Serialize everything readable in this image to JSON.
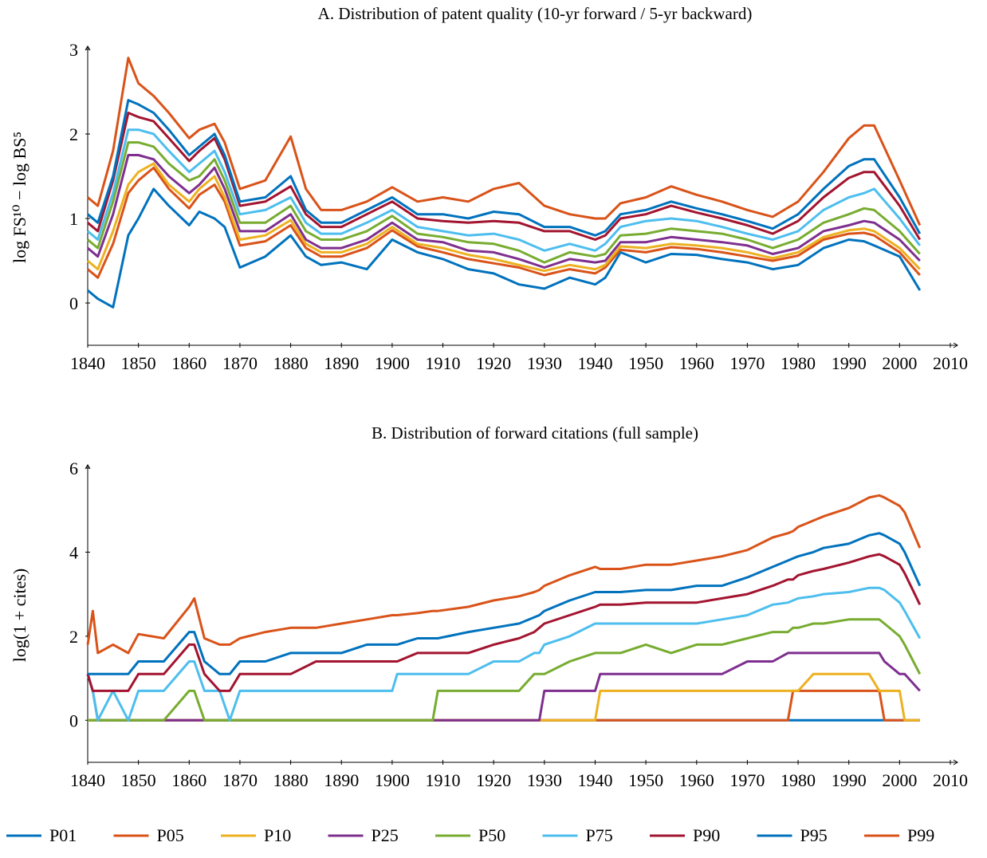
{
  "chart_data": [
    {
      "type": "line",
      "title": "A. Distribution of patent quality (10-yr forward / 5-yr backward)",
      "y_label": "log FS¹⁰ − log BS⁵",
      "x": [
        1840,
        1842,
        1845,
        1848,
        1850,
        1853,
        1856,
        1860,
        1862,
        1865,
        1867,
        1870,
        1875,
        1880,
        1883,
        1886,
        1890,
        1895,
        1900,
        1905,
        1910,
        1915,
        1920,
        1925,
        1930,
        1935,
        1940,
        1942,
        1945,
        1950,
        1955,
        1960,
        1965,
        1970,
        1975,
        1980,
        1985,
        1990,
        1993,
        1995,
        2000,
        2004
      ],
      "xlim": [
        1840,
        2010
      ],
      "ylim": [
        -0.5,
        3
      ],
      "xticks": [
        1840,
        1850,
        1860,
        1870,
        1880,
        1890,
        1900,
        1910,
        1920,
        1930,
        1940,
        1950,
        1960,
        1970,
        1980,
        1990,
        2000,
        2010
      ],
      "yticks": [
        0,
        1,
        2,
        3
      ],
      "series": [
        {
          "name": "P01",
          "color": "#0072bd",
          "values": [
            0.15,
            0.05,
            -0.05,
            0.8,
            1.0,
            1.35,
            1.15,
            0.92,
            1.08,
            1.0,
            0.9,
            0.42,
            0.55,
            0.8,
            0.55,
            0.45,
            0.48,
            0.4,
            0.75,
            0.6,
            0.52,
            0.4,
            0.35,
            0.22,
            0.17,
            0.3,
            0.22,
            0.3,
            0.6,
            0.48,
            0.58,
            0.57,
            0.52,
            0.48,
            0.4,
            0.45,
            0.65,
            0.75,
            0.73,
            0.68,
            0.55,
            0.15
          ]
        },
        {
          "name": "P05",
          "color": "#d95319",
          "values": [
            0.4,
            0.3,
            0.7,
            1.3,
            1.45,
            1.6,
            1.35,
            1.12,
            1.28,
            1.4,
            1.2,
            0.68,
            0.73,
            0.92,
            0.65,
            0.55,
            0.55,
            0.65,
            0.86,
            0.67,
            0.6,
            0.52,
            0.47,
            0.42,
            0.33,
            0.4,
            0.35,
            0.42,
            0.63,
            0.6,
            0.66,
            0.64,
            0.6,
            0.55,
            0.5,
            0.56,
            0.75,
            0.82,
            0.83,
            0.8,
            0.6,
            0.33
          ]
        },
        {
          "name": "P10",
          "color": "#edb120",
          "values": [
            0.5,
            0.4,
            0.85,
            1.4,
            1.55,
            1.65,
            1.4,
            1.2,
            1.35,
            1.5,
            1.25,
            0.75,
            0.8,
            0.98,
            0.7,
            0.6,
            0.6,
            0.7,
            0.9,
            0.7,
            0.65,
            0.57,
            0.52,
            0.45,
            0.38,
            0.45,
            0.4,
            0.45,
            0.67,
            0.65,
            0.7,
            0.68,
            0.65,
            0.6,
            0.53,
            0.6,
            0.78,
            0.86,
            0.88,
            0.85,
            0.65,
            0.4
          ]
        },
        {
          "name": "P25",
          "color": "#7e2f8e",
          "values": [
            0.65,
            0.55,
            1.05,
            1.75,
            1.75,
            1.7,
            1.5,
            1.3,
            1.4,
            1.6,
            1.35,
            0.85,
            0.85,
            1.05,
            0.75,
            0.65,
            0.65,
            0.75,
            0.95,
            0.75,
            0.72,
            0.62,
            0.6,
            0.52,
            0.42,
            0.52,
            0.48,
            0.5,
            0.72,
            0.72,
            0.78,
            0.75,
            0.72,
            0.68,
            0.58,
            0.65,
            0.85,
            0.92,
            0.97,
            0.95,
            0.75,
            0.5
          ]
        },
        {
          "name": "P50",
          "color": "#77ac30",
          "values": [
            0.75,
            0.65,
            1.2,
            1.9,
            1.9,
            1.85,
            1.65,
            1.45,
            1.5,
            1.7,
            1.45,
            0.95,
            0.95,
            1.15,
            0.85,
            0.75,
            0.75,
            0.85,
            1.03,
            0.82,
            0.78,
            0.72,
            0.7,
            0.62,
            0.48,
            0.6,
            0.55,
            0.58,
            0.8,
            0.82,
            0.88,
            0.85,
            0.82,
            0.75,
            0.65,
            0.75,
            0.95,
            1.05,
            1.12,
            1.1,
            0.85,
            0.58
          ]
        },
        {
          "name": "P75",
          "color": "#4dbeee",
          "values": [
            0.85,
            0.75,
            1.3,
            2.05,
            2.05,
            2.0,
            1.8,
            1.55,
            1.65,
            1.8,
            1.55,
            1.05,
            1.1,
            1.25,
            0.95,
            0.82,
            0.82,
            0.95,
            1.1,
            0.9,
            0.85,
            0.8,
            0.82,
            0.75,
            0.62,
            0.7,
            0.62,
            0.7,
            0.9,
            0.97,
            1.0,
            0.97,
            0.9,
            0.82,
            0.75,
            0.85,
            1.1,
            1.25,
            1.3,
            1.35,
            1.0,
            0.68
          ]
        },
        {
          "name": "P90",
          "color": "#a2142f",
          "values": [
            0.95,
            0.85,
            1.45,
            2.25,
            2.2,
            2.15,
            1.95,
            1.68,
            1.8,
            1.95,
            1.7,
            1.15,
            1.2,
            1.38,
            1.05,
            0.9,
            0.9,
            1.05,
            1.2,
            1.0,
            0.97,
            0.95,
            0.97,
            0.95,
            0.85,
            0.85,
            0.75,
            0.8,
            1.0,
            1.05,
            1.15,
            1.07,
            1.0,
            0.92,
            0.82,
            0.97,
            1.25,
            1.48,
            1.55,
            1.55,
            1.15,
            0.75
          ]
        },
        {
          "name": "P95",
          "color": "#0072bd",
          "values": [
            1.05,
            0.95,
            1.5,
            2.4,
            2.35,
            2.25,
            2.05,
            1.75,
            1.85,
            2.0,
            1.75,
            1.2,
            1.25,
            1.5,
            1.1,
            0.95,
            0.95,
            1.1,
            1.25,
            1.05,
            1.05,
            1.0,
            1.08,
            1.05,
            0.9,
            0.9,
            0.8,
            0.85,
            1.05,
            1.1,
            1.2,
            1.12,
            1.05,
            0.97,
            0.88,
            1.05,
            1.35,
            1.62,
            1.7,
            1.7,
            1.25,
            0.82
          ]
        },
        {
          "name": "P99",
          "color": "#d95319",
          "values": [
            1.25,
            1.15,
            1.8,
            2.9,
            2.6,
            2.45,
            2.25,
            1.95,
            2.05,
            2.12,
            1.9,
            1.35,
            1.45,
            1.97,
            1.35,
            1.1,
            1.1,
            1.2,
            1.37,
            1.2,
            1.25,
            1.2,
            1.35,
            1.42,
            1.15,
            1.05,
            1.0,
            1.0,
            1.18,
            1.25,
            1.38,
            1.28,
            1.2,
            1.1,
            1.02,
            1.2,
            1.55,
            1.95,
            2.1,
            2.1,
            1.45,
            0.92
          ]
        }
      ]
    },
    {
      "type": "line",
      "title": "B. Distribution of forward citations (full sample)",
      "y_label": "log(1 + cites)",
      "x": [
        1840,
        1841,
        1842,
        1845,
        1848,
        1850,
        1855,
        1860,
        1861,
        1863,
        1866,
        1868,
        1870,
        1875,
        1880,
        1885,
        1890,
        1895,
        1900,
        1901,
        1905,
        1908,
        1909,
        1915,
        1920,
        1925,
        1928,
        1929,
        1930,
        1935,
        1940,
        1941,
        1945,
        1950,
        1955,
        1960,
        1965,
        1970,
        1975,
        1978,
        1979,
        1980,
        1983,
        1985,
        1990,
        1994,
        1996,
        1997,
        2000,
        2001,
        2004
      ],
      "xlim": [
        1840,
        2010
      ],
      "ylim": [
        -1,
        6
      ],
      "xticks": [
        1840,
        1850,
        1860,
        1870,
        1880,
        1890,
        1900,
        1910,
        1920,
        1930,
        1940,
        1950,
        1960,
        1970,
        1980,
        1990,
        2000,
        2010
      ],
      "yticks": [
        0,
        2,
        4,
        6
      ],
      "series": [
        {
          "color": "#0072bd",
          "values": [
            0,
            0,
            0,
            0,
            0,
            0,
            0,
            0,
            0,
            0,
            0,
            0,
            0,
            0,
            0,
            0,
            0,
            0,
            0,
            0,
            0,
            0,
            0,
            0,
            0,
            0,
            0,
            0,
            0,
            0,
            0,
            0,
            0,
            0,
            0,
            0,
            0,
            0,
            0,
            0,
            0,
            0,
            0,
            0,
            0,
            0,
            0,
            0,
            0,
            0,
            0
          ]
        },
        {
          "color": "#d95319",
          "values": [
            0,
            0,
            0,
            0,
            0,
            0,
            0,
            0,
            0,
            0,
            0,
            0,
            0,
            0,
            0,
            0,
            0,
            0,
            0,
            0,
            0,
            0,
            0,
            0,
            0,
            0,
            0,
            0,
            0,
            0,
            0,
            0,
            0,
            0,
            0,
            0,
            0,
            0,
            0,
            0,
            0.7,
            0.7,
            0.7,
            0.7,
            0.7,
            0.7,
            0.7,
            0,
            0,
            0,
            0
          ]
        },
        {
          "color": "#edb120",
          "values": [
            0,
            0,
            0,
            0,
            0,
            0,
            0,
            0,
            0,
            0,
            0,
            0,
            0,
            0,
            0,
            0,
            0,
            0,
            0,
            0,
            0,
            0,
            0,
            0,
            0,
            0,
            0,
            0,
            0,
            0,
            0,
            0.7,
            0.7,
            0.7,
            0.7,
            0.7,
            0.7,
            0.7,
            0.7,
            0.7,
            0.7,
            0.7,
            1.1,
            1.1,
            1.1,
            1.1,
            0.7,
            0.7,
            0.7,
            0,
            0
          ]
        },
        {
          "color": "#7e2f8e",
          "values": [
            1.1,
            0.7,
            0,
            0,
            0,
            0,
            0,
            0,
            0,
            0,
            0,
            0,
            0,
            0,
            0,
            0,
            0,
            0,
            0,
            0,
            0,
            0,
            0,
            0,
            0,
            0,
            0,
            0,
            0.7,
            0.7,
            0.7,
            1.1,
            1.1,
            1.1,
            1.1,
            1.1,
            1.1,
            1.4,
            1.4,
            1.6,
            1.6,
            1.6,
            1.6,
            1.6,
            1.6,
            1.6,
            1.6,
            1.4,
            1.1,
            1.1,
            0.7
          ]
        },
        {
          "color": "#77ac30",
          "values": [
            0,
            0,
            0,
            0,
            0,
            0,
            0,
            0.7,
            0.7,
            0,
            0,
            0,
            0,
            0,
            0,
            0,
            0,
            0,
            0,
            0,
            0,
            0,
            0.7,
            0.7,
            0.7,
            0.7,
            1.1,
            1.1,
            1.1,
            1.4,
            1.6,
            1.6,
            1.6,
            1.8,
            1.6,
            1.8,
            1.8,
            1.95,
            2.1,
            2.1,
            2.2,
            2.2,
            2.3,
            2.3,
            2.4,
            2.4,
            2.4,
            2.3,
            2.0,
            1.8,
            1.1
          ]
        },
        {
          "color": "#4dbeee",
          "values": [
            1.1,
            0.7,
            0,
            0.7,
            0,
            0.7,
            0.7,
            1.4,
            1.4,
            0.7,
            0.7,
            0,
            0.7,
            0.7,
            0.7,
            0.7,
            0.7,
            0.7,
            0.7,
            1.1,
            1.1,
            1.1,
            1.1,
            1.1,
            1.4,
            1.4,
            1.6,
            1.6,
            1.8,
            2.0,
            2.3,
            2.3,
            2.3,
            2.3,
            2.3,
            2.3,
            2.4,
            2.5,
            2.75,
            2.8,
            2.85,
            2.9,
            2.95,
            3.0,
            3.05,
            3.15,
            3.15,
            3.1,
            2.8,
            2.6,
            1.95
          ]
        },
        {
          "color": "#a2142f",
          "values": [
            1.1,
            0.7,
            0.7,
            0.7,
            0.7,
            1.1,
            1.1,
            1.8,
            1.8,
            1.1,
            0.7,
            0.7,
            1.1,
            1.1,
            1.1,
            1.4,
            1.4,
            1.4,
            1.4,
            1.4,
            1.6,
            1.6,
            1.6,
            1.6,
            1.8,
            1.95,
            2.1,
            2.2,
            2.3,
            2.5,
            2.7,
            2.75,
            2.75,
            2.8,
            2.8,
            2.8,
            2.9,
            3.0,
            3.2,
            3.35,
            3.35,
            3.45,
            3.55,
            3.6,
            3.75,
            3.9,
            3.95,
            3.9,
            3.7,
            3.5,
            2.75
          ]
        },
        {
          "color": "#0072bd",
          "values": [
            1.1,
            1.1,
            1.1,
            1.1,
            1.1,
            1.4,
            1.4,
            2.1,
            2.1,
            1.4,
            1.1,
            1.1,
            1.4,
            1.4,
            1.6,
            1.6,
            1.6,
            1.8,
            1.8,
            1.8,
            1.95,
            1.95,
            1.95,
            2.1,
            2.2,
            2.3,
            2.45,
            2.5,
            2.6,
            2.85,
            3.05,
            3.05,
            3.05,
            3.1,
            3.1,
            3.2,
            3.2,
            3.4,
            3.65,
            3.8,
            3.85,
            3.9,
            4.0,
            4.1,
            4.2,
            4.4,
            4.45,
            4.4,
            4.2,
            4.0,
            3.2
          ]
        },
        {
          "color": "#d95319",
          "values": [
            1.8,
            2.6,
            1.6,
            1.8,
            1.6,
            2.05,
            1.95,
            2.7,
            2.9,
            1.95,
            1.8,
            1.8,
            1.95,
            2.1,
            2.2,
            2.2,
            2.3,
            2.4,
            2.5,
            2.5,
            2.55,
            2.6,
            2.6,
            2.7,
            2.85,
            2.95,
            3.05,
            3.1,
            3.2,
            3.45,
            3.65,
            3.6,
            3.6,
            3.7,
            3.7,
            3.8,
            3.9,
            4.05,
            4.35,
            4.45,
            4.5,
            4.6,
            4.75,
            4.85,
            5.05,
            5.3,
            5.35,
            5.3,
            5.1,
            4.95,
            4.1
          ]
        }
      ]
    }
  ]
}
